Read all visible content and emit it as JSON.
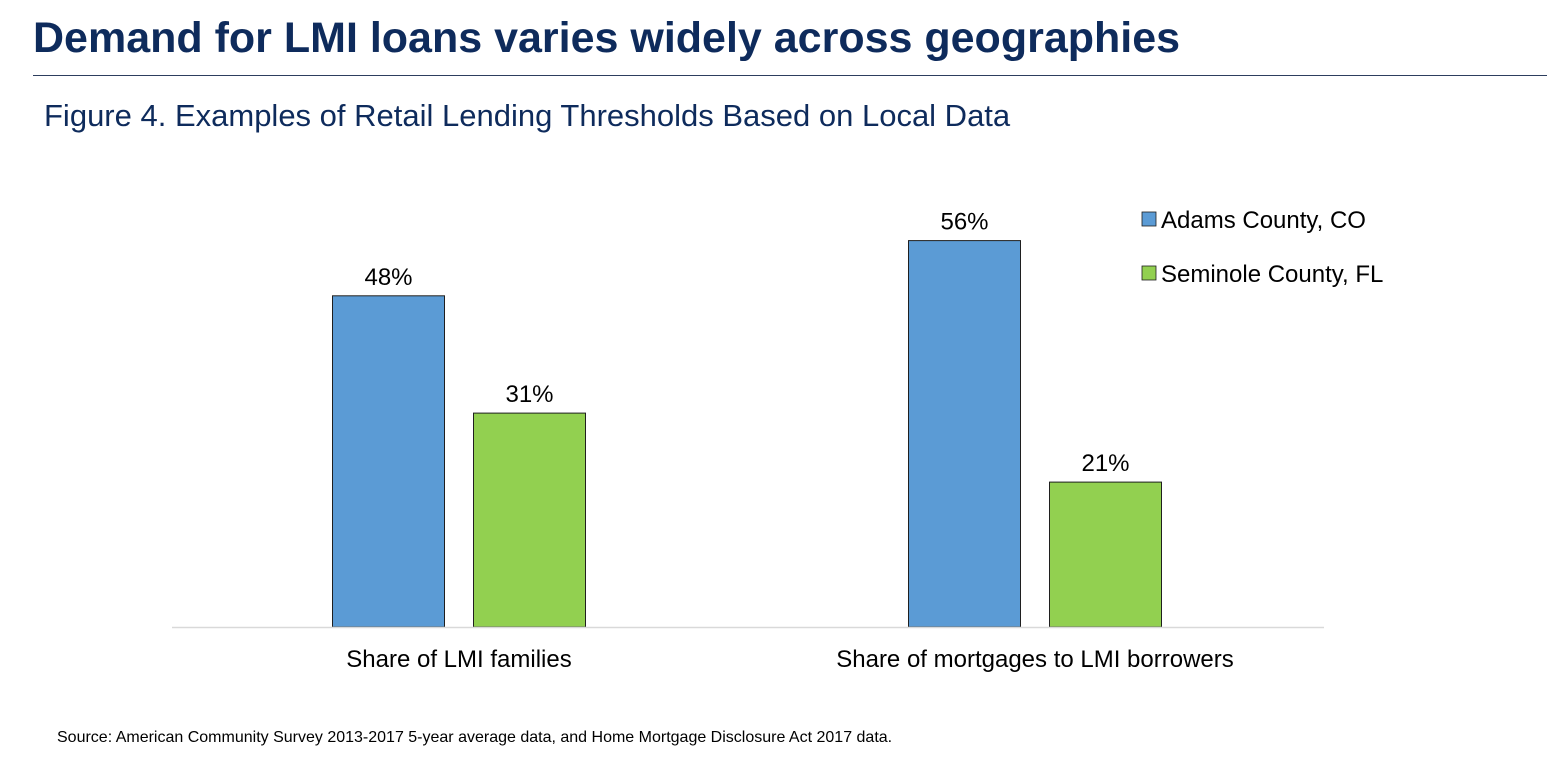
{
  "header": {
    "title": "Demand for LMI loans varies widely across geographies",
    "figure_title": "Figure 4. Examples of Retail Lending Thresholds Based on Local Data"
  },
  "footer": {
    "source": "Source: American Community Survey 2013-2017 5-year average data, and Home Mortgage Disclosure Act 2017 data."
  },
  "colors": {
    "title": "#0e2b5c",
    "adams": "#5b9bd5",
    "seminole": "#92d050"
  },
  "chart_data": {
    "type": "bar",
    "title": "Figure 4. Examples of Retail Lending Thresholds Based on Local Data",
    "categories": [
      "Share of LMI families",
      "Share of mortgages to LMI borrowers"
    ],
    "series": [
      {
        "name": "Adams County, CO",
        "values": [
          48,
          56
        ],
        "labels": [
          "48%",
          "56%"
        ],
        "color": "#5b9bd5"
      },
      {
        "name": "Seminole County, FL",
        "values": [
          31,
          21
        ],
        "labels": [
          "31%",
          "21%"
        ],
        "color": "#92d050"
      }
    ],
    "xlabel": "",
    "ylabel": "",
    "unit": "%",
    "ylim": [
      0,
      60
    ],
    "grid": false,
    "legend": "top-right"
  }
}
